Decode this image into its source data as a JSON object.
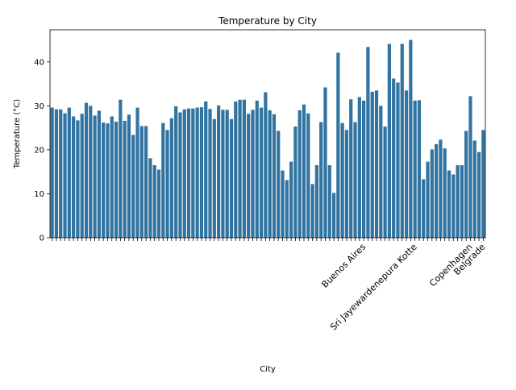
{
  "chart_data": {
    "type": "bar",
    "title": "Temperature by City",
    "x_label": "City",
    "y_label": "Temperature (°C)",
    "categories": [
      null,
      null,
      null,
      null,
      null,
      null,
      null,
      null,
      null,
      null,
      null,
      null,
      null,
      null,
      null,
      null,
      null,
      null,
      null,
      null,
      null,
      null,
      null,
      null,
      null,
      null,
      null,
      null,
      null,
      null,
      null,
      null,
      null,
      null,
      null,
      null,
      null,
      null,
      null,
      null,
      null,
      null,
      null,
      null,
      null,
      null,
      null,
      null,
      null,
      null,
      null,
      null,
      null,
      null,
      null,
      null,
      null,
      null,
      null,
      null,
      null,
      null,
      null,
      null,
      null,
      null,
      null,
      null,
      null,
      null,
      null,
      null,
      null,
      "Buenos Aires",
      null,
      null,
      null,
      null,
      null,
      null,
      null,
      null,
      null,
      null,
      null,
      "Sri Jayewardenepura Kotte",
      null,
      null,
      null,
      null,
      null,
      null,
      null,
      null,
      null,
      null,
      null,
      null,
      "Copenhagen",
      null,
      null,
      "Belgrade"
    ],
    "values": [
      29.6,
      29.2,
      29.2,
      28.3,
      29.6,
      27.6,
      26.7,
      28.2,
      30.7,
      30.0,
      27.8,
      28.9,
      26.2,
      26.0,
      27.6,
      26.4,
      31.4,
      26.6,
      28.0,
      23.4,
      29.6,
      25.4,
      25.4,
      18.1,
      16.5,
      15.5,
      26.1,
      24.5,
      27.2,
      29.9,
      28.5,
      29.2,
      29.4,
      29.4,
      29.6,
      29.7,
      31.0,
      29.3,
      27.0,
      30.1,
      29.1,
      29.1,
      27.0,
      31.0,
      31.4,
      31.4,
      28.2,
      29.1,
      31.2,
      29.6,
      33.1,
      29.0,
      28.1,
      24.3,
      15.3,
      13.1,
      17.3,
      25.3,
      29.0,
      30.3,
      28.3,
      12.2,
      16.5,
      26.3,
      34.2,
      16.5,
      10.2,
      42.1,
      26.1,
      24.5,
      31.5,
      26.3,
      32.0,
      31.2,
      43.4,
      33.2,
      33.5,
      30.0,
      25.3,
      44.1,
      36.2,
      35.3,
      44.1,
      33.5,
      45.0,
      31.2,
      31.3,
      13.3,
      17.3,
      20.1,
      21.3,
      22.3,
      20.3,
      15.3,
      14.4,
      16.5,
      16.5,
      24.3,
      32.2,
      22.1,
      19.5,
      24.5
    ],
    "color": "#3274a1",
    "ylim": [
      0,
      47.3
    ],
    "yticks": [
      0,
      10,
      20,
      30,
      40
    ],
    "grid": false
  }
}
